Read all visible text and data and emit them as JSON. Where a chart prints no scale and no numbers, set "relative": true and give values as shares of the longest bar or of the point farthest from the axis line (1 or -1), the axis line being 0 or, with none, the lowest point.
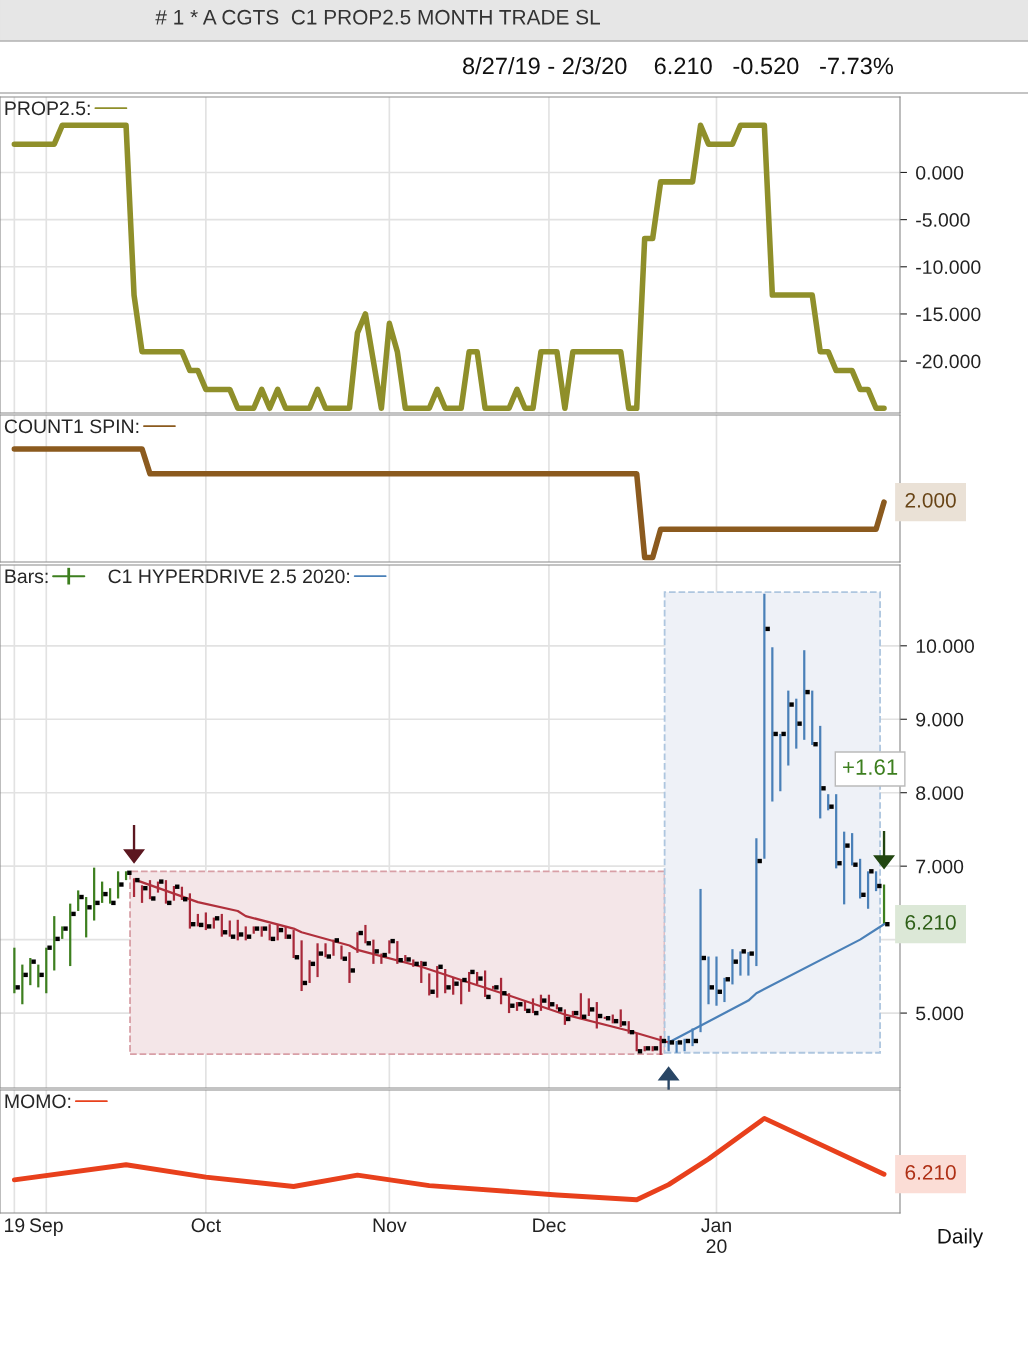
{
  "chart_data": [
    {
      "type": "line",
      "title": "# 1 * A CGTS  C1 PROP2.5 MONTH TRADE SL",
      "subtitle": "8/27/19 - 2/3/20    6.210   -0.520   -7.73%",
      "categories": [
        null,
        null,
        null,
        null,
        null,
        null,
        null,
        null,
        null,
        null,
        null,
        null,
        null,
        null,
        null,
        null,
        null,
        null,
        null,
        null,
        null,
        null,
        null,
        null,
        null,
        null,
        null,
        null,
        null,
        null,
        null,
        null,
        null,
        null,
        null,
        null,
        null,
        null,
        null,
        null,
        null,
        null,
        null,
        null,
        null,
        null,
        null,
        null,
        null,
        null,
        null,
        null,
        null,
        null,
        null,
        null,
        null,
        null,
        null,
        null,
        null,
        null,
        null,
        null,
        null,
        null,
        null,
        null,
        null,
        null,
        null,
        null,
        null,
        null,
        null,
        null,
        null,
        null,
        null,
        null,
        null,
        null,
        null,
        null,
        null,
        null,
        null,
        null,
        null,
        null,
        null,
        null,
        null,
        null,
        null,
        null,
        null,
        null,
        null,
        null,
        null,
        null,
        null,
        null,
        null,
        null,
        null,
        null,
        null,
        null
      ],
      "series": [
        {
          "name": "PROP2.5:",
          "color": "#8f8f2a",
          "values": [
            3,
            3,
            3,
            3,
            3,
            3,
            5,
            5,
            5,
            5,
            5,
            5,
            5,
            5,
            5,
            -13,
            -19,
            -19,
            -19,
            -19,
            -19,
            -19,
            -21,
            -21,
            -23,
            -23,
            -23,
            -23,
            -25,
            -25,
            -25,
            -23,
            -25,
            -23,
            -25,
            -25,
            -25,
            -25,
            -23,
            -25,
            -25,
            -25,
            -25,
            -17,
            -15,
            -20,
            -25,
            -16,
            -19,
            -25,
            -25,
            -25,
            -25,
            -23,
            -25,
            -25,
            -25,
            -19,
            -19,
            -25,
            -25,
            -25,
            -25,
            -23,
            -25,
            -25,
            -19,
            -19,
            -19,
            -25,
            -19,
            -19,
            -19,
            -19,
            -19,
            -19,
            -19,
            -25,
            -25,
            -7,
            -7,
            -1,
            -1,
            -1,
            -1,
            -1,
            5,
            3,
            3,
            3,
            3,
            5,
            5,
            5,
            5,
            -13,
            -13,
            -13,
            -13,
            -13,
            -13,
            -19,
            -19,
            -21,
            -21,
            -21,
            -23,
            -23,
            -25,
            -25
          ]
        }
      ],
      "ylim": [
        -25.5,
        8
      ],
      "yticks": [
        {
          "value": 0,
          "label": "0.000"
        },
        {
          "value": -5,
          "label": "-5.000"
        },
        {
          "value": -10,
          "label": "-10.000"
        },
        {
          "value": -15,
          "label": "-15.000"
        },
        {
          "value": -20,
          "label": "-20.000"
        }
      ],
      "grid": true,
      "legend": "top left",
      "tick_labels": "y"
    },
    {
      "type": "line",
      "relative": true,
      "categories": [
        null,
        null,
        null,
        null,
        null,
        null,
        null,
        null,
        null,
        null,
        null,
        null,
        null,
        null,
        null,
        null,
        null,
        null,
        null,
        null,
        null,
        null,
        null,
        null,
        null,
        null,
        null,
        null,
        null,
        null,
        null,
        null,
        null,
        null,
        null,
        null,
        null,
        null,
        null,
        null,
        null,
        null,
        null,
        null,
        null,
        null,
        null,
        null,
        null,
        null,
        null,
        null,
        null,
        null,
        null,
        null,
        null,
        null,
        null,
        null,
        null,
        null,
        null,
        null,
        null,
        null,
        null,
        null,
        null,
        null,
        null,
        null,
        null,
        null,
        null,
        null,
        null,
        null,
        null,
        null,
        null,
        null,
        null,
        null,
        null,
        null,
        null,
        null,
        null,
        null,
        null,
        null,
        null,
        null,
        null,
        null,
        null,
        null,
        null,
        null,
        null,
        null,
        null,
        null,
        null,
        null,
        null,
        null,
        null,
        null
      ],
      "series": [
        {
          "name": "COUNT1 SPIN:",
          "color": "#8b5a1e",
          "values": [
            1,
            1,
            1,
            1,
            1,
            1,
            1,
            1,
            1,
            1,
            1,
            1,
            1,
            1,
            1,
            1,
            1,
            0.78,
            0.78,
            0.78,
            0.78,
            0.78,
            0.78,
            0.78,
            0.78,
            0.78,
            0.78,
            0.78,
            0.78,
            0.78,
            0.78,
            0.78,
            0.78,
            0.78,
            0.78,
            0.78,
            0.78,
            0.78,
            0.78,
            0.78,
            0.78,
            0.78,
            0.78,
            0.78,
            0.78,
            0.78,
            0.78,
            0.78,
            0.78,
            0.78,
            0.78,
            0.78,
            0.78,
            0.78,
            0.78,
            0.78,
            0.78,
            0.78,
            0.78,
            0.78,
            0.78,
            0.78,
            0.78,
            0.78,
            0.78,
            0.78,
            0.78,
            0.78,
            0.78,
            0.78,
            0.78,
            0.78,
            0.78,
            0.78,
            0.78,
            0.78,
            0.78,
            0.78,
            0.78,
            0.04,
            0.04,
            0.29,
            0.29,
            0.29,
            0.29,
            0.29,
            0.29,
            0.29,
            0.29,
            0.29,
            0.29,
            0.29,
            0.29,
            0.29,
            0.29,
            0.29,
            0.29,
            0.29,
            0.29,
            0.29,
            0.29,
            0.29,
            0.29,
            0.29,
            0.29,
            0.29,
            0.29,
            0.29,
            0.29,
            0.53
          ]
        }
      ],
      "annotations": [
        "2.000"
      ],
      "grid": true,
      "legend": "top left",
      "tick_labels": false
    },
    {
      "type": "bar",
      "categories": [
        null,
        null,
        null,
        null,
        null,
        null,
        null,
        null,
        null,
        null,
        null,
        null,
        null,
        null,
        null,
        null,
        null,
        null,
        null,
        null,
        null,
        null,
        null,
        null,
        null,
        null,
        null,
        null,
        null,
        null,
        null,
        null,
        null,
        null,
        null,
        null,
        null,
        null,
        null,
        null,
        null,
        null,
        null,
        null,
        null,
        null,
        null,
        null,
        null,
        null,
        null,
        null,
        null,
        null,
        null,
        null,
        null,
        null,
        null,
        null,
        null,
        null,
        null,
        null,
        null,
        null,
        null,
        null,
        null,
        null,
        null,
        null,
        null,
        null,
        null,
        null,
        null,
        null,
        null,
        null,
        null,
        null,
        null,
        null,
        null,
        null,
        null,
        null,
        null,
        null,
        null,
        null,
        null,
        null,
        null,
        null,
        null,
        null,
        null,
        null,
        null,
        null,
        null,
        null,
        null,
        null,
        null,
        null,
        null,
        null
      ],
      "series": [
        {
          "name": "Bars:",
          "type": "bar",
          "base": [
            5.27,
            5.12,
            5.38,
            5.35,
            5.27,
            5.58,
            6.01,
            5.64,
            6.39,
            6.03,
            6.26,
            6.5,
            6.49,
            6.56,
            6.81,
            6.58,
            6.5,
            6.55,
            6.64,
            6.49,
            6.53,
            6.54,
            6.15,
            6.18,
            6.13,
            6.15,
            6.04,
            6.04,
            5.99,
            5.99,
            6.08,
            6.04,
            5.99,
            5.99,
            6.01,
            5.75,
            5.3,
            5.41,
            5.49,
            5.76,
            5.78,
            5.73,
            5.41,
            5.82,
            5.95,
            5.67,
            5.67,
            5.81,
            5.67,
            5.7,
            5.63,
            5.41,
            5.24,
            5.21,
            5.27,
            5.25,
            5.12,
            5.29,
            5.39,
            5.22,
            5.33,
            5.12,
            5.0,
            5.03,
            5.03,
            5.0,
            5.03,
            5.05,
            5.05,
            4.84,
            4.95,
            4.92,
            4.96,
            4.79,
            4.92,
            4.86,
            4.81,
            4.72,
            4.48,
            4.48,
            4.48,
            4.43,
            4.48,
            4.46,
            4.48,
            4.55,
            4.74,
            5.12,
            5.1,
            5.15,
            5.39,
            5.51,
            5.51,
            5.64,
            7.1,
            7.88,
            8.02,
            8.37,
            8.6,
            8.72,
            8.65,
            7.65,
            7.76,
            6.97,
            6.48,
            7.01,
            6.56,
            6.42,
            6.66,
            6.21
          ],
          "values": [
            0.62,
            0.54,
            0.37,
            0.31,
            0.62,
            0.74,
            0.17,
            0.85,
            0.28,
            0.55,
            0.72,
            0.29,
            0.21,
            0.37,
            0.12,
            0.25,
            0.24,
            0.26,
            0.15,
            0.32,
            0.2,
            0.18,
            0.48,
            0.17,
            0.24,
            0.15,
            0.31,
            0.22,
            0.28,
            0.19,
            0.1,
            0.14,
            0.22,
            0.21,
            0.17,
            0.38,
            0.69,
            0.31,
            0.46,
            0.19,
            0.22,
            0.19,
            0.42,
            0.28,
            0.25,
            0.33,
            0.14,
            0.18,
            0.31,
            0.09,
            0.1,
            0.3,
            0.3,
            0.43,
            0.33,
            0.23,
            0.33,
            0.27,
            0.17,
            0.36,
            0.04,
            0.36,
            0.27,
            0.12,
            0.14,
            0.2,
            0.22,
            0.2,
            0.07,
            0.21,
            0.08,
            0.35,
            0.24,
            0.36,
            0.03,
            0.12,
            0.24,
            0.17,
            0.24,
            0.07,
            0.07,
            0.26,
            0.21,
            0.16,
            0.17,
            0.24,
            1.95,
            0.65,
            0.67,
            0.33,
            0.48,
            0.33,
            0.32,
            1.74,
            3.61,
            2.1,
            0.78,
            1.02,
            0.68,
            1.22,
            0.74,
            1.26,
            0.22,
            1.01,
            0.99,
            0.44,
            0.54,
            0.51,
            0.27,
            0.54
          ],
          "colors": [
            "#3d7f1f",
            "#3d7f1f",
            "#3d7f1f",
            "#3d7f1f",
            "#3d7f1f",
            "#3d7f1f",
            "#3d7f1f",
            "#3d7f1f",
            "#3d7f1f",
            "#3d7f1f",
            "#3d7f1f",
            "#3d7f1f",
            "#3d7f1f",
            "#3d7f1f",
            "#3d7f1f",
            "#a8293a",
            "#a8293a",
            "#a8293a",
            "#a8293a",
            "#a8293a",
            "#a8293a",
            "#a8293a",
            "#a8293a",
            "#a8293a",
            "#a8293a",
            "#a8293a",
            "#a8293a",
            "#a8293a",
            "#a8293a",
            "#a8293a",
            "#a8293a",
            "#a8293a",
            "#a8293a",
            "#a8293a",
            "#a8293a",
            "#a8293a",
            "#a8293a",
            "#a8293a",
            "#a8293a",
            "#a8293a",
            "#a8293a",
            "#a8293a",
            "#a8293a",
            "#a8293a",
            "#a8293a",
            "#a8293a",
            "#a8293a",
            "#a8293a",
            "#a8293a",
            "#a8293a",
            "#a8293a",
            "#a8293a",
            "#a8293a",
            "#a8293a",
            "#a8293a",
            "#a8293a",
            "#a8293a",
            "#a8293a",
            "#a8293a",
            "#a8293a",
            "#a8293a",
            "#a8293a",
            "#a8293a",
            "#a8293a",
            "#a8293a",
            "#a8293a",
            "#a8293a",
            "#a8293a",
            "#a8293a",
            "#a8293a",
            "#a8293a",
            "#a8293a",
            "#a8293a",
            "#a8293a",
            "#a8293a",
            "#a8293a",
            "#a8293a",
            "#a8293a",
            "#a8293a",
            "#a8293a",
            "#a8293a",
            "#a8293a",
            "#4a80b8",
            "#4a80b8",
            "#4a80b8",
            "#4a80b8",
            "#4a80b8",
            "#4a80b8",
            "#4a80b8",
            "#4a80b8",
            "#4a80b8",
            "#4a80b8",
            "#4a80b8",
            "#4a80b8",
            "#4a80b8",
            "#4a80b8",
            "#4a80b8",
            "#4a80b8",
            "#4a80b8",
            "#4a80b8",
            "#4a80b8",
            "#4a80b8",
            "#4a80b8",
            "#4a80b8",
            "#4a80b8",
            "#4a80b8",
            "#4a80b8",
            "#4a80b8",
            "#4a80b8",
            "#3d7f1f"
          ]
        },
        {
          "type": "scatter",
          "color": "#000000",
          "marker": "square",
          "values": [
            5.35,
            5.52,
            5.7,
            5.52,
            5.89,
            6.01,
            6.15,
            6.35,
            6.58,
            6.44,
            6.5,
            6.62,
            6.5,
            6.75,
            6.91,
            6.81,
            6.7,
            6.56,
            6.79,
            6.5,
            6.72,
            6.55,
            6.21,
            6.2,
            6.18,
            6.29,
            6.1,
            6.04,
            6.07,
            6.04,
            6.15,
            6.15,
            6.01,
            6.13,
            6.04,
            5.76,
            5.41,
            5.67,
            5.81,
            5.77,
            5.99,
            5.74,
            5.58,
            6.09,
            5.95,
            5.84,
            5.79,
            5.98,
            5.72,
            5.73,
            5.67,
            5.67,
            5.29,
            5.63,
            5.35,
            5.4,
            5.45,
            5.56,
            5.47,
            5.22,
            5.35,
            5.27,
            5.1,
            5.12,
            5.03,
            5.0,
            5.17,
            5.12,
            5.05,
            4.92,
            5.0,
            4.95,
            5.05,
            4.96,
            4.93,
            4.89,
            4.86,
            4.74,
            4.48,
            4.52,
            4.52,
            4.62,
            4.6,
            4.6,
            4.62,
            4.62,
            5.75,
            5.35,
            5.29,
            5.46,
            5.7,
            5.84,
            5.81,
            7.07,
            10.23,
            8.8,
            8.8,
            9.2,
            8.94,
            9.37,
            8.66,
            8.06,
            7.81,
            7.04,
            7.28,
            7.02,
            6.61,
            6.93,
            6.73,
            6.21
          ]
        },
        {
          "type": "line",
          "color": "#b0303c",
          "values": [
            null,
            null,
            null,
            null,
            null,
            null,
            null,
            null,
            null,
            null,
            null,
            null,
            null,
            null,
            null,
            6.82,
            null,
            null,
            null,
            null,
            null,
            null,
            null,
            6.51,
            null,
            null,
            null,
            null,
            6.39,
            6.32,
            null,
            null,
            null,
            null,
            null,
            6.15,
            6.1,
            null,
            null,
            null,
            null,
            null,
            5.92,
            5.86,
            null,
            null,
            null,
            null,
            null,
            null,
            null,
            5.63,
            null,
            null,
            null,
            null,
            5.45,
            null,
            null,
            null,
            null,
            null,
            5.24,
            null,
            null,
            null,
            null,
            null,
            null,
            4.98,
            null,
            null,
            null,
            null,
            null,
            null,
            null,
            4.76,
            null,
            null,
            null,
            null,
            4.6,
            null,
            null,
            null,
            null,
            null,
            null,
            null,
            null,
            null,
            null,
            null,
            null,
            null,
            null,
            null,
            null,
            null,
            null,
            null,
            null,
            null,
            null,
            null,
            null,
            null,
            null,
            null
          ]
        },
        {
          "name": "C1 HYPERDRIVE 2.5 2020:",
          "type": "line",
          "color": "#4a80b8",
          "values": [
            null,
            null,
            null,
            null,
            null,
            null,
            null,
            null,
            null,
            null,
            null,
            null,
            null,
            null,
            null,
            null,
            null,
            null,
            null,
            null,
            null,
            null,
            null,
            null,
            null,
            null,
            null,
            null,
            null,
            null,
            null,
            null,
            null,
            null,
            null,
            null,
            null,
            null,
            null,
            null,
            null,
            null,
            null,
            null,
            null,
            null,
            null,
            null,
            null,
            null,
            null,
            null,
            null,
            null,
            null,
            null,
            null,
            null,
            null,
            null,
            null,
            null,
            null,
            null,
            null,
            null,
            null,
            null,
            null,
            null,
            null,
            null,
            null,
            null,
            null,
            null,
            null,
            null,
            null,
            null,
            null,
            null,
            4.6,
            null,
            null,
            null,
            null,
            null,
            null,
            null,
            null,
            null,
            5.17,
            5.27,
            null,
            null,
            null,
            null,
            null,
            null,
            null,
            null,
            null,
            null,
            null,
            null,
            6.0,
            null,
            null,
            6.21
          ]
        }
      ],
      "bands": [
        {
          "axis": "y",
          "from": 4.44,
          "to": 6.93,
          "color": "#f4e6e8"
        },
        {
          "axis": "y",
          "from": 4.46,
          "to": 10.73,
          "color": "#eef1f7"
        }
      ],
      "ylim": [
        3.98,
        11.1
      ],
      "yticks": [
        {
          "value": 5,
          "label": "5.000"
        },
        {
          "value": 6,
          "label": null
        },
        {
          "value": 7,
          "label": "7.000"
        },
        {
          "value": 8,
          "label": "8.000"
        },
        {
          "value": 9,
          "label": "9.000"
        },
        {
          "value": 10,
          "label": "10.000"
        }
      ],
      "annotations": [
        "+1.61",
        "6.210"
      ],
      "grid": true,
      "legend": "top left",
      "tick_labels": "y"
    },
    {
      "type": "line",
      "relative": true,
      "categories": [
        "19",
        null,
        null,
        null,
        "Sep",
        null,
        null,
        null,
        null,
        null,
        null,
        null,
        null,
        null,
        null,
        null,
        null,
        null,
        null,
        null,
        null,
        null,
        null,
        null,
        "Oct",
        null,
        null,
        null,
        null,
        null,
        null,
        null,
        null,
        null,
        null,
        null,
        null,
        null,
        null,
        null,
        null,
        null,
        null,
        null,
        null,
        null,
        null,
        "Nov",
        null,
        null,
        null,
        null,
        null,
        null,
        null,
        null,
        null,
        null,
        null,
        null,
        null,
        null,
        null,
        null,
        null,
        null,
        null,
        "Dec",
        null,
        null,
        null,
        null,
        null,
        null,
        null,
        null,
        null,
        null,
        null,
        null,
        null,
        null,
        null,
        null,
        null,
        null,
        null,
        null,
        "Jan\n20",
        null,
        null,
        null,
        null,
        null,
        null,
        null,
        null,
        null,
        null,
        null,
        null,
        null,
        null,
        null,
        null,
        null,
        null,
        null,
        null,
        null
      ],
      "series": [
        {
          "name": "MOMO:",
          "color": "#e8401c",
          "values": [
            0.35,
            null,
            null,
            null,
            null,
            null,
            null,
            null,
            null,
            null,
            null,
            null,
            null,
            null,
            0.51,
            null,
            null,
            null,
            null,
            null,
            null,
            null,
            null,
            null,
            0.38,
            null,
            null,
            null,
            null,
            null,
            null,
            null,
            null,
            null,
            null,
            0.28,
            null,
            null,
            null,
            null,
            null,
            null,
            null,
            0.4,
            null,
            null,
            null,
            null,
            null,
            null,
            null,
            null,
            0.29,
            null,
            null,
            null,
            null,
            null,
            null,
            null,
            null,
            null,
            null,
            null,
            null,
            null,
            null,
            null,
            0.19,
            null,
            null,
            null,
            null,
            null,
            null,
            null,
            null,
            null,
            0.14,
            null,
            null,
            null,
            0.3,
            null,
            null,
            null,
            null,
            0.57,
            null,
            null,
            null,
            null,
            null,
            null,
            1,
            null,
            null,
            null,
            null,
            null,
            null,
            null,
            null,
            null,
            null,
            null,
            null,
            null,
            null,
            0.41
          ]
        }
      ],
      "annotations": [
        "6.210",
        "Daily"
      ],
      "grid": true,
      "legend": "top left",
      "tick_labels": "x"
    }
  ]
}
